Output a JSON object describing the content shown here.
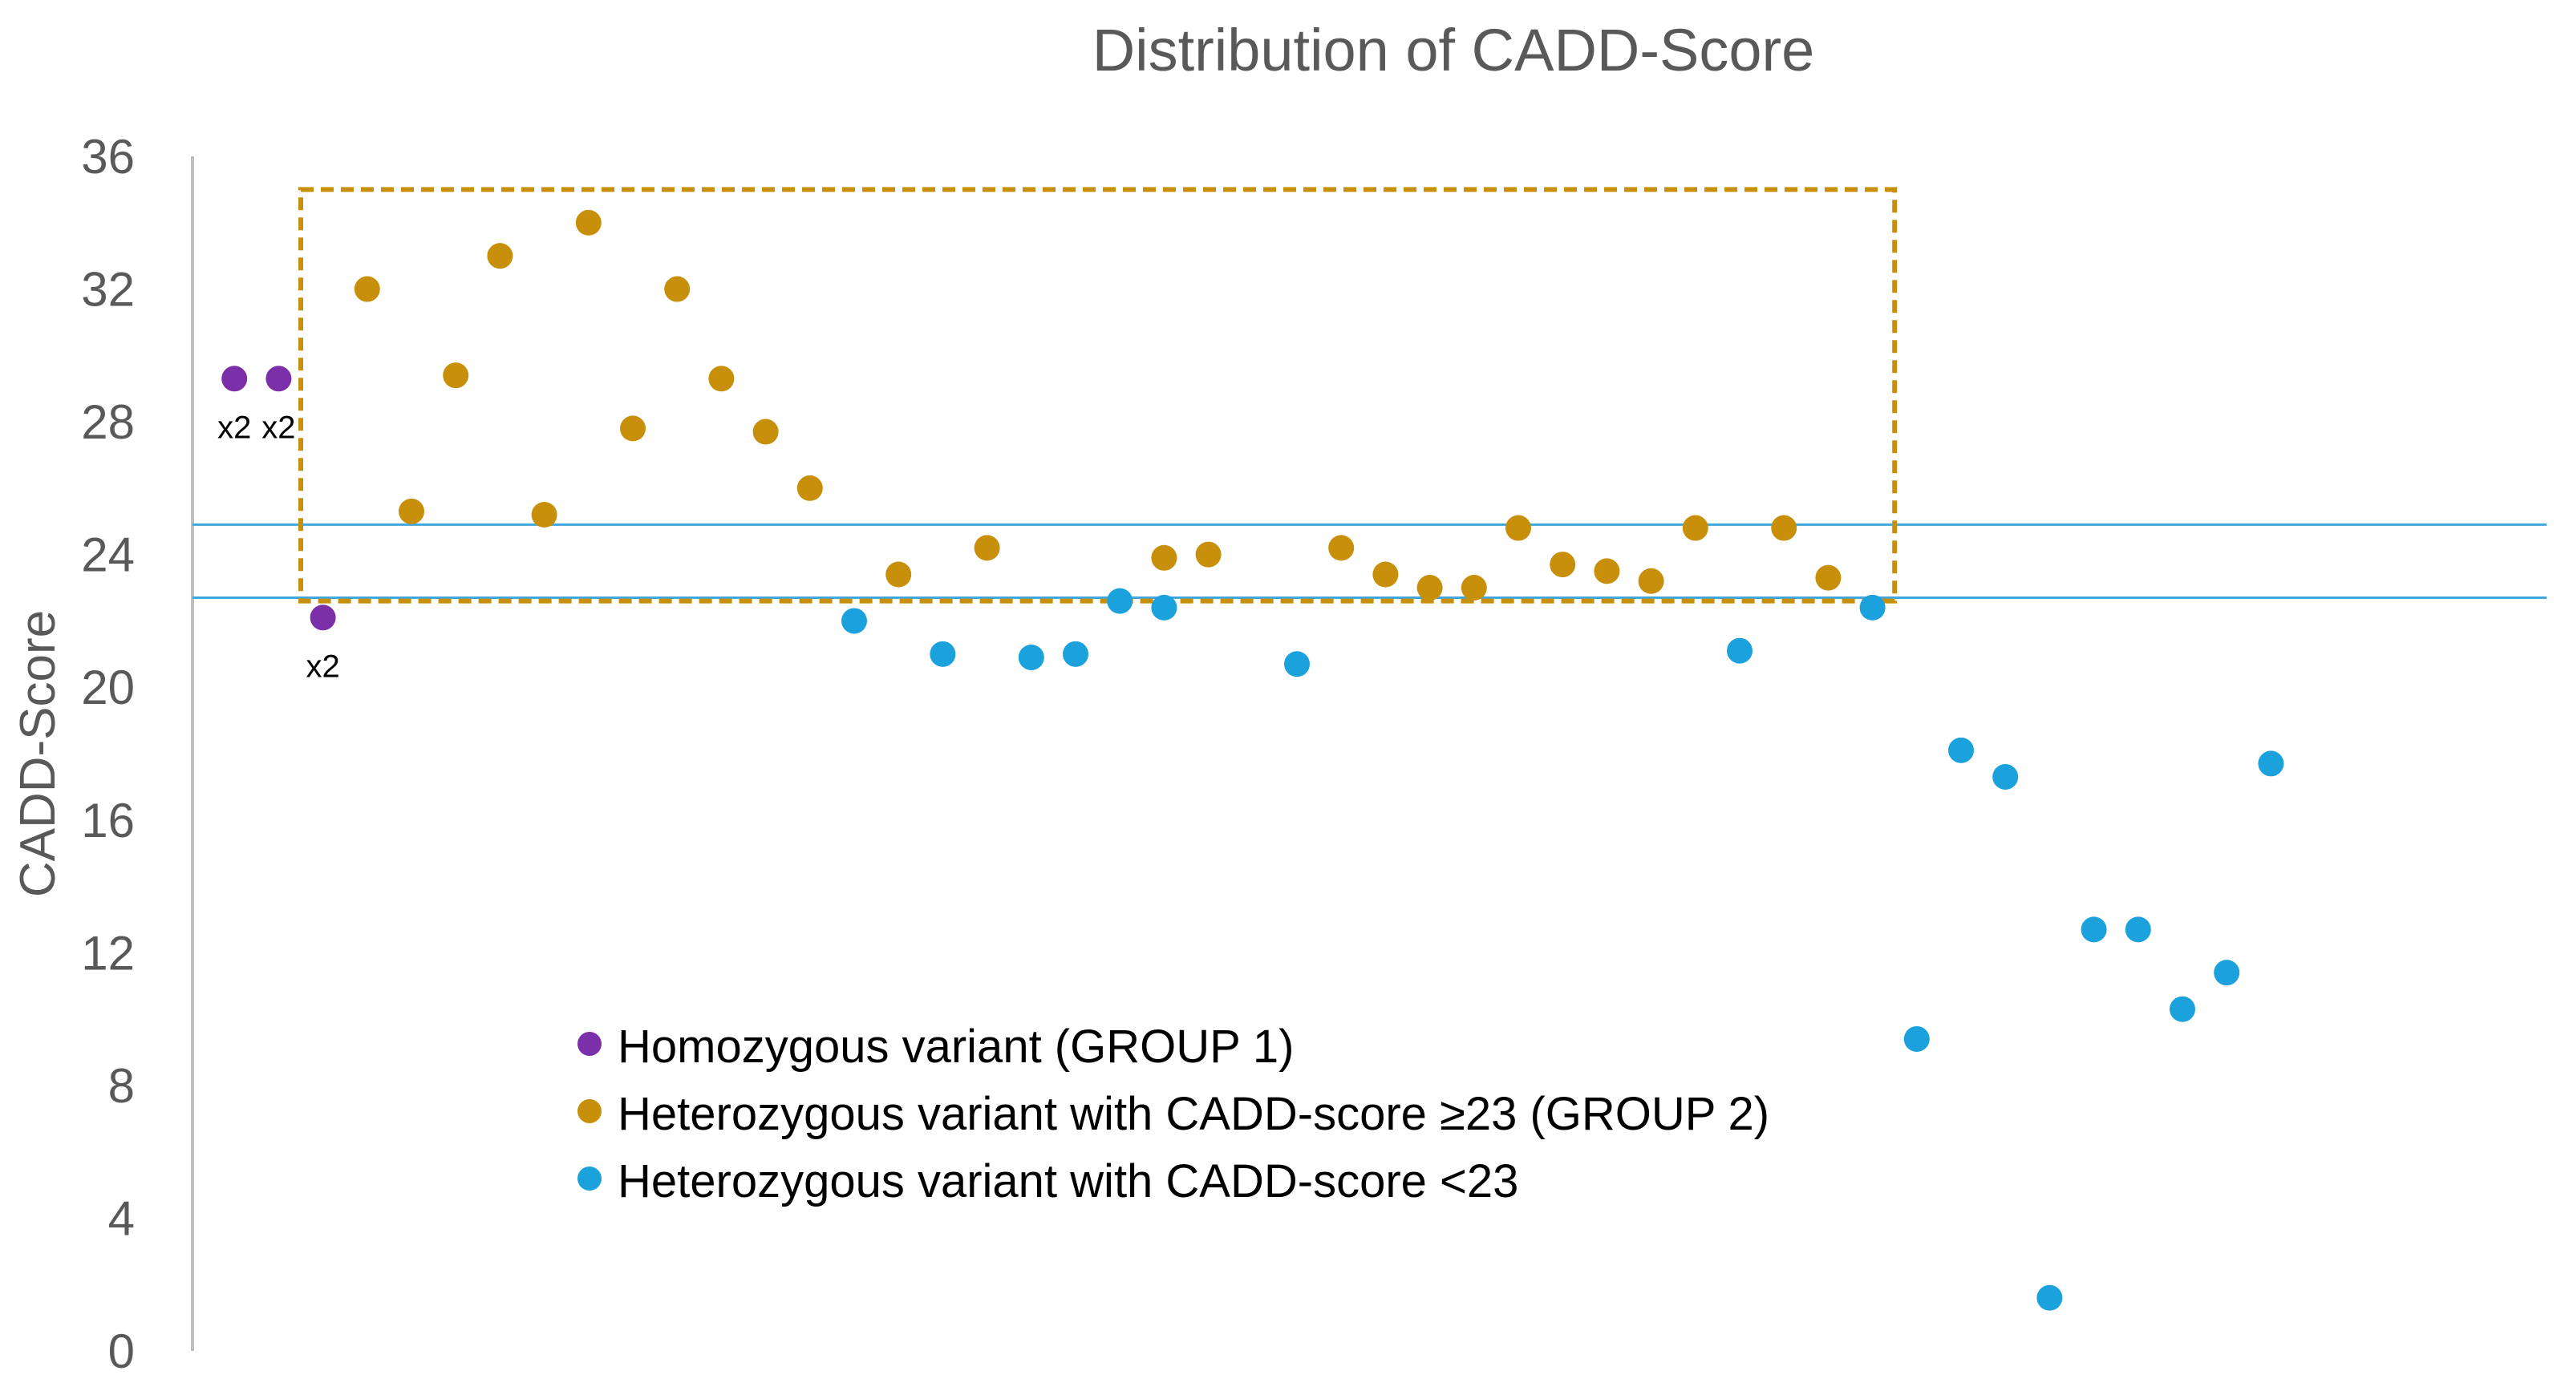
{
  "chart_data": {
    "type": "scatter",
    "title": "Distribution of CADD-Score",
    "xlabel": "",
    "ylabel": "CADD-Score",
    "ylim": [
      0,
      36
    ],
    "yticks": [
      0,
      4,
      8,
      12,
      16,
      20,
      24,
      28,
      32,
      36
    ],
    "xlim": [
      0,
      48
    ],
    "grid": false,
    "legend_position": "bottom-center",
    "reference_lines": [
      22.7,
      24.9
    ],
    "highlight_box": {
      "x_start": 2.5,
      "x_end": 38.5,
      "y_start": 22.6,
      "y_end": 35.0,
      "color": "#C8900A"
    },
    "series": [
      {
        "name": "Homozygous variant  (GROUP 1)",
        "color": "#7B2FA8",
        "points": [
          {
            "x": 1,
            "y": 29.3
          },
          {
            "x": 2,
            "y": 29.3
          },
          {
            "x": 3,
            "y": 22.1
          }
        ]
      },
      {
        "name": "Heterozygous variant with CADD-score ≥23 (GROUP 2)",
        "color": "#C8900A",
        "points": [
          {
            "x": 4,
            "y": 32.0
          },
          {
            "x": 5,
            "y": 25.3
          },
          {
            "x": 6,
            "y": 29.4
          },
          {
            "x": 7,
            "y": 33.0
          },
          {
            "x": 8,
            "y": 25.2
          },
          {
            "x": 9,
            "y": 34.0
          },
          {
            "x": 10,
            "y": 27.8
          },
          {
            "x": 11,
            "y": 32.0
          },
          {
            "x": 12,
            "y": 29.3
          },
          {
            "x": 13,
            "y": 27.7
          },
          {
            "x": 14,
            "y": 26.0
          },
          {
            "x": 16,
            "y": 23.4
          },
          {
            "x": 18,
            "y": 24.2
          },
          {
            "x": 22,
            "y": 23.9
          },
          {
            "x": 23,
            "y": 24.0
          },
          {
            "x": 26,
            "y": 24.2
          },
          {
            "x": 27,
            "y": 23.4
          },
          {
            "x": 28,
            "y": 23.0
          },
          {
            "x": 29,
            "y": 23.0
          },
          {
            "x": 30,
            "y": 24.8
          },
          {
            "x": 31,
            "y": 23.7
          },
          {
            "x": 32,
            "y": 23.5
          },
          {
            "x": 33,
            "y": 23.2
          },
          {
            "x": 34,
            "y": 24.8
          },
          {
            "x": 36,
            "y": 24.8
          },
          {
            "x": 37,
            "y": 23.3
          }
        ]
      },
      {
        "name": "Heterozygous variant with CADD-score <23",
        "color": "#1BA1DC",
        "points": [
          {
            "x": 15,
            "y": 22.0
          },
          {
            "x": 17,
            "y": 21.0
          },
          {
            "x": 19,
            "y": 20.9
          },
          {
            "x": 20,
            "y": 21.0
          },
          {
            "x": 21,
            "y": 22.6
          },
          {
            "x": 22,
            "y": 22.4
          },
          {
            "x": 25,
            "y": 20.7
          },
          {
            "x": 35,
            "y": 21.1
          },
          {
            "x": 38,
            "y": 22.4
          },
          {
            "x": 39,
            "y": 9.4
          },
          {
            "x": 40,
            "y": 18.1
          },
          {
            "x": 41,
            "y": 17.3
          },
          {
            "x": 42,
            "y": 1.6
          },
          {
            "x": 43,
            "y": 12.7
          },
          {
            "x": 44,
            "y": 12.7
          },
          {
            "x": 45,
            "y": 10.3
          },
          {
            "x": 46,
            "y": 11.4
          },
          {
            "x": 47,
            "y": 17.7
          }
        ]
      }
    ],
    "annotations": [
      {
        "text": "x2",
        "x": 1,
        "y": 29.3
      },
      {
        "text": "x2",
        "x": 2,
        "y": 29.3
      },
      {
        "text": "x2",
        "x": 3,
        "y": 22.1
      }
    ]
  }
}
